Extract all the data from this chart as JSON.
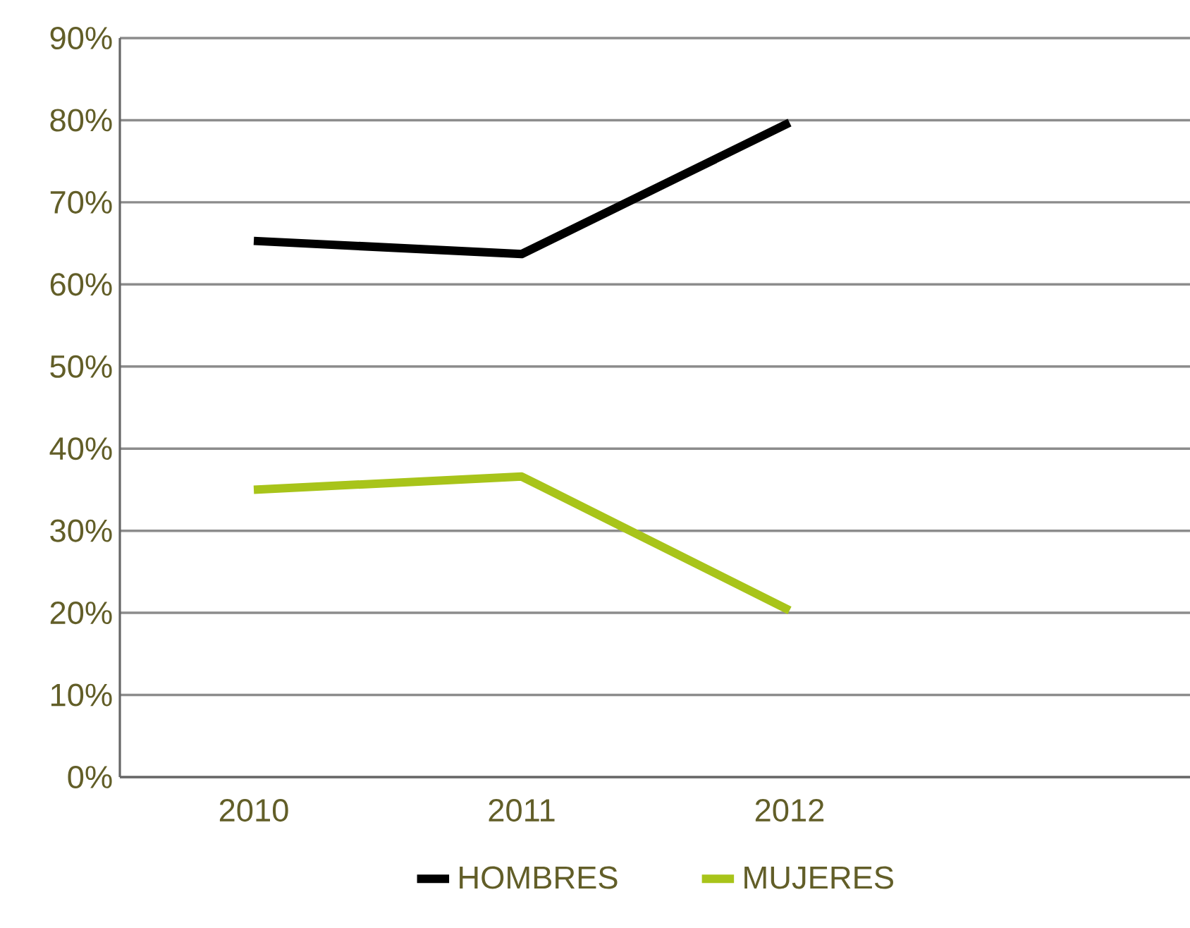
{
  "chart_data": {
    "type": "line",
    "categories": [
      "2010",
      "2011",
      "2012",
      null
    ],
    "series": [
      {
        "name": "HOMBRES",
        "color": "#000000",
        "values": [
          65.3,
          63.7,
          79.7,
          null
        ]
      },
      {
        "name": "MUJERES",
        "color": "#a8c41a",
        "values": [
          35.0,
          36.6,
          20.3,
          null
        ]
      }
    ],
    "ylim": [
      0,
      90
    ],
    "yticks": [
      {
        "value": 0,
        "label": "0%"
      },
      {
        "value": 10,
        "label": "10%"
      },
      {
        "value": 20,
        "label": "20%"
      },
      {
        "value": 30,
        "label": "30%"
      },
      {
        "value": 40,
        "label": "40%"
      },
      {
        "value": 50,
        "label": "50%"
      },
      {
        "value": 60,
        "label": "60%"
      },
      {
        "value": 70,
        "label": "70%"
      },
      {
        "value": 80,
        "label": "80%"
      },
      {
        "value": 90,
        "label": "90%"
      }
    ],
    "grid": "y",
    "legend": "bottom",
    "marker": "none",
    "line_style": "solid"
  }
}
